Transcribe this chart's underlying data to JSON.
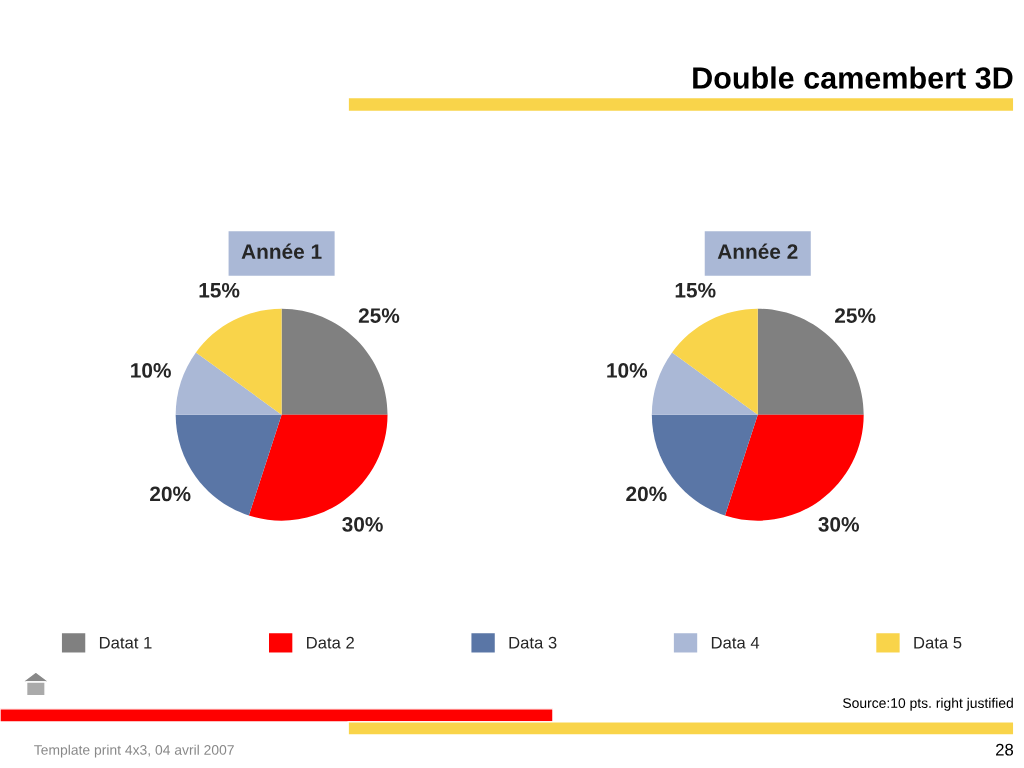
{
  "chart_data": [
    {
      "type": "pie",
      "title": "Année 1",
      "categories": [
        "Datat 1",
        "Data 2",
        "Data 3",
        "Data 4",
        "Data 5"
      ],
      "values": [
        25,
        30,
        20,
        10,
        15
      ],
      "colors": [
        "#808080",
        "#ff0000",
        "#5a76a6",
        "#aab8d6",
        "#f9d44a"
      ],
      "value_labels": [
        "25%",
        "30%",
        "20%",
        "10%",
        "15%"
      ],
      "legend": "bottom",
      "annotations": [
        "Double camembert 3D",
        "Source:10 pts. right justified",
        "Template print 4x3, 04 avril 2007",
        "28"
      ]
    },
    {
      "type": "pie",
      "title": "Année 2",
      "categories": [
        null,
        null,
        null,
        null,
        null
      ],
      "values": [
        25,
        30,
        20,
        10,
        15
      ],
      "colors": [
        "#808080",
        "#ff0000",
        "#5a76a6",
        "#aab8d6",
        "#f9d44a"
      ],
      "value_labels": [
        "25%",
        "30%",
        "20%",
        "10%",
        "15%"
      ]
    }
  ]
}
